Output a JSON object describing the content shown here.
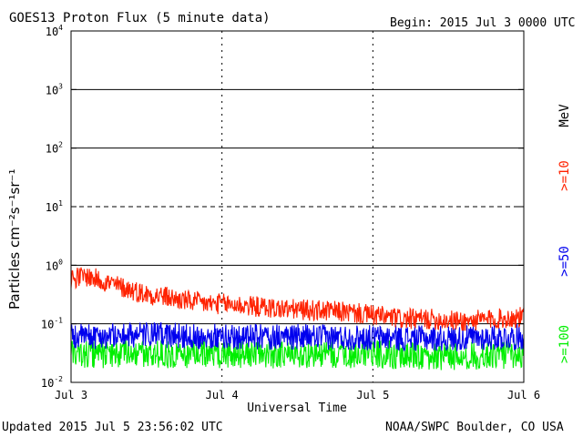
{
  "header": {
    "title": "GOES13 Proton Flux (5 minute data)",
    "begin": "Begin: 2015 Jul 3 0000 UTC"
  },
  "footer": {
    "updated": "Updated 2015 Jul  5 23:56:02 UTC",
    "source": "NOAA/SWPC Boulder, CO USA"
  },
  "chart_data": {
    "type": "line",
    "title": "GOES13 Proton Flux (5 minute data)",
    "xlabel": "Universal Time",
    "ylabel": "Particles cm⁻²s⁻¹sr⁻¹",
    "yscale": "log",
    "ylim": [
      0.01,
      10000
    ],
    "xlim_days": [
      0,
      3
    ],
    "x_tick_labels": [
      "Jul 3",
      "Jul 4",
      "Jul 5",
      "Jul 6"
    ],
    "y_tick_base": "10",
    "y_tick_exponents": [
      "-2",
      "-1",
      "0",
      "1",
      "2",
      "3",
      "4"
    ],
    "legend_unit": "MeV",
    "colors": {
      "ge10": "#ff2200",
      "ge50": "#0000ee",
      "ge100": "#00ee00",
      "grid": "#000000"
    },
    "series": [
      {
        "name": ">=10",
        "color": "#ff2200",
        "x_days": [
          0,
          0.1,
          0.2,
          0.3,
          0.4,
          0.5,
          0.6,
          0.7,
          0.8,
          0.9,
          1.0,
          1.2,
          1.4,
          1.6,
          1.8,
          2.0,
          2.2,
          2.4,
          2.6,
          2.8,
          3.0
        ],
        "values": [
          0.6,
          0.65,
          0.55,
          0.45,
          0.38,
          0.32,
          0.3,
          0.26,
          0.24,
          0.22,
          0.22,
          0.2,
          0.18,
          0.17,
          0.16,
          0.14,
          0.12,
          0.12,
          0.11,
          0.12,
          0.13
        ]
      },
      {
        "name": ">=50",
        "color": "#0000ee",
        "x_days": [
          0,
          0.5,
          1.0,
          1.5,
          2.0,
          2.5,
          3.0
        ],
        "values": [
          0.06,
          0.065,
          0.06,
          0.06,
          0.058,
          0.056,
          0.06
        ]
      },
      {
        "name": ">=100",
        "color": "#00ee00",
        "x_days": [
          0,
          0.5,
          1.0,
          1.5,
          2.0,
          2.5,
          3.0
        ],
        "values": [
          0.03,
          0.03,
          0.03,
          0.03,
          0.03,
          0.028,
          0.03
        ]
      }
    ]
  }
}
